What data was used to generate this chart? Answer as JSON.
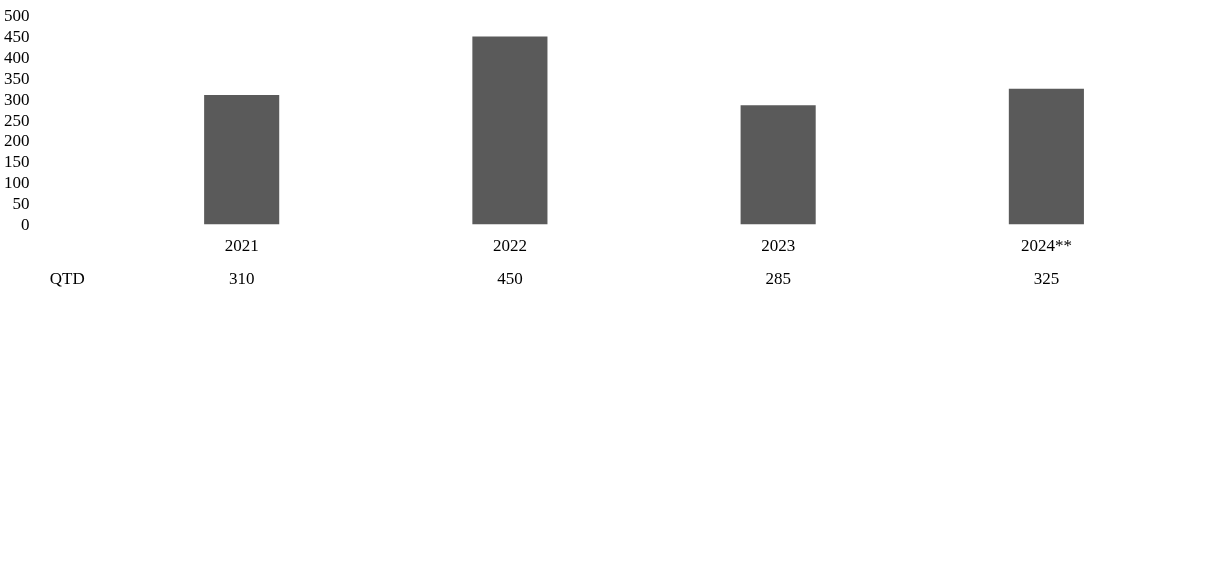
{
  "chart_data": {
    "type": "bar",
    "categories": [
      "2021",
      "2022",
      "2023",
      "2024**"
    ],
    "series": [
      {
        "name": "QTD",
        "color": "#5a5a5a",
        "values": [
          310,
          450,
          285,
          325
        ]
      }
    ],
    "ylim": [
      0,
      500
    ],
    "yticks": [
      0,
      50,
      100,
      150,
      200,
      250,
      300,
      350,
      400,
      450,
      500
    ],
    "grid": false,
    "data_labels": true
  }
}
